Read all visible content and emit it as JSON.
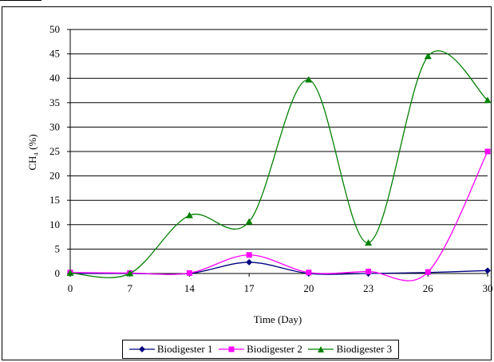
{
  "chart_data": {
    "type": "line",
    "title": "",
    "xlabel": "Time (Day)",
    "ylabel": "CH₄ (%)",
    "x": [
      "0",
      "7",
      "14",
      "17",
      "20",
      "23",
      "26",
      "30"
    ],
    "ylim": [
      0,
      50
    ],
    "yticks": [
      "0",
      "5",
      "10",
      "15",
      "20",
      "25",
      "30",
      "35",
      "40",
      "45",
      "50"
    ],
    "grid": true,
    "legend_position": "bottom",
    "smoothed": true,
    "series": [
      {
        "name": "Biodigester 1",
        "color": "#000080",
        "marker": "diamond",
        "values": [
          0,
          0,
          0,
          2.3,
          0,
          0,
          0.2,
          0.6
        ]
      },
      {
        "name": "Biodigester 2",
        "color": "#ff00ff",
        "marker": "square",
        "values": [
          0.2,
          0.1,
          0.1,
          3.8,
          0.2,
          0.4,
          0.3,
          25
        ]
      },
      {
        "name": "Biodigester 3",
        "color": "#008000",
        "marker": "triangle",
        "values": [
          0.1,
          0,
          11.9,
          10.6,
          39.7,
          6.3,
          44.5,
          35.5
        ]
      }
    ]
  }
}
